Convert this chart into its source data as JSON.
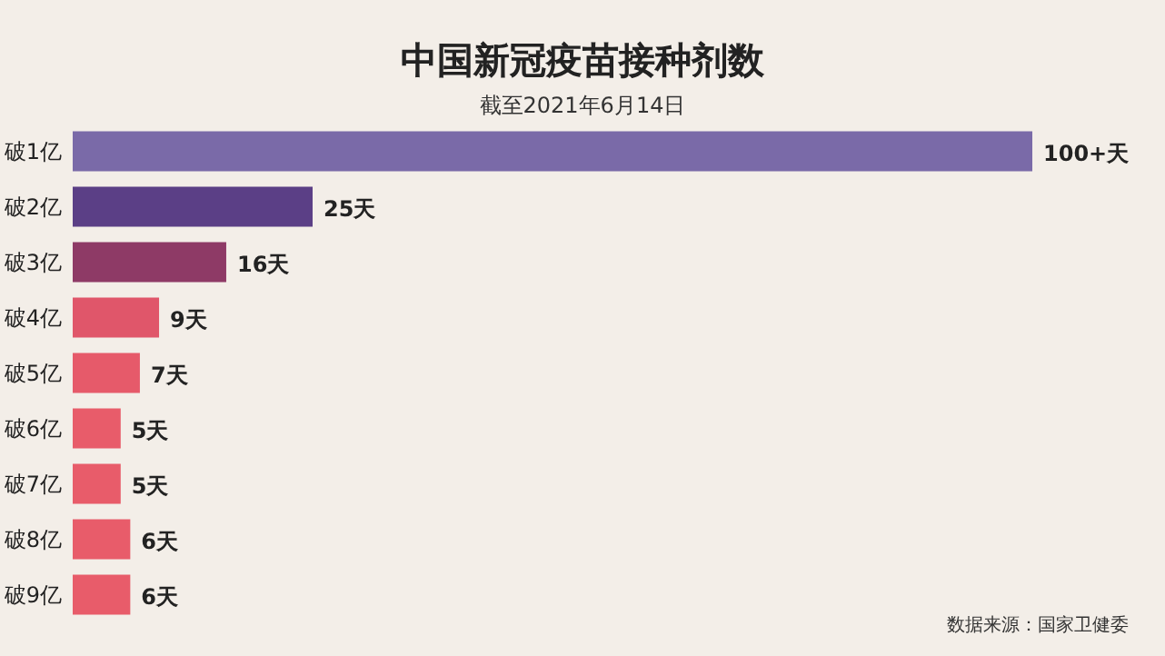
{
  "chart_data": {
    "type": "bar",
    "orientation": "horizontal",
    "title": "中国新冠疫苗接种剂数",
    "subtitle": "截至2021年6月14日",
    "categories": [
      "破1亿",
      "破2亿",
      "破3亿",
      "破4亿",
      "破5亿",
      "破6亿",
      "破7亿",
      "破8亿",
      "破9亿"
    ],
    "values": [
      100,
      25,
      16,
      9,
      7,
      5,
      5,
      6,
      6
    ],
    "value_labels": [
      "100+天",
      "25天",
      "16天",
      "9天",
      "7天",
      "5天",
      "5天",
      "6天",
      "6天"
    ],
    "colors": [
      "#7a6aa8",
      "#5b3f86",
      "#8e3a66",
      "#e0566a",
      "#e65a6a",
      "#e85c6a",
      "#e85c6a",
      "#e85c6a",
      "#e85c6a"
    ],
    "annotations": [
      "数据来源：国家卫健委"
    ]
  }
}
